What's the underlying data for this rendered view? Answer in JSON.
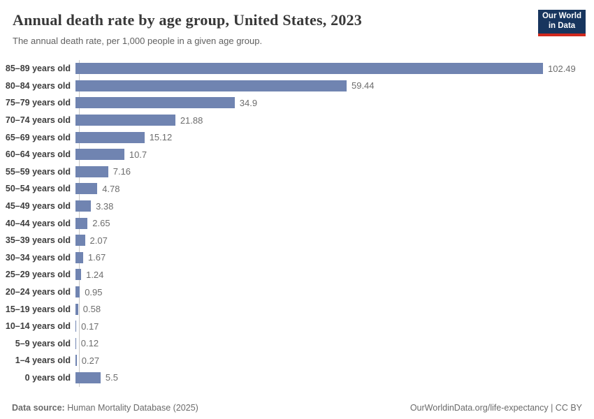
{
  "header": {
    "title": "Annual death rate by age group, United States, 2023",
    "subtitle": "The annual death rate, per 1,000 people in a given age group."
  },
  "logo": {
    "line1": "Our World",
    "line2": "in Data",
    "bg_color": "#17355e",
    "accent_color": "#d0291d"
  },
  "chart_data": {
    "type": "bar",
    "orientation": "horizontal",
    "title": "Annual death rate by age group, United States, 2023",
    "xlabel": "",
    "ylabel": "",
    "xlim": [
      0,
      105
    ],
    "grid": false,
    "legend": "none",
    "bar_color": "#7084b1",
    "categories": [
      "85–89 years old",
      "80–84 years old",
      "75–79 years old",
      "70–74 years old",
      "65–69 years old",
      "60–64 years old",
      "55–59 years old",
      "50–54 years old",
      "45–49 years old",
      "40–44 years old",
      "35–39 years old",
      "30–34 years old",
      "25–29 years old",
      "20–24 years old",
      "15–19 years old",
      "10–14 years old",
      "5–9 years old",
      "1–4 years old",
      "0 years old"
    ],
    "values": [
      102.49,
      59.44,
      34.9,
      21.88,
      15.12,
      10.7,
      7.16,
      4.78,
      3.38,
      2.65,
      2.07,
      1.67,
      1.24,
      0.95,
      0.58,
      0.17,
      0.12,
      0.27,
      5.5
    ],
    "value_labels": [
      "102.49",
      "59.44",
      "34.9",
      "21.88",
      "15.12",
      "10.7",
      "7.16",
      "4.78",
      "3.38",
      "2.65",
      "2.07",
      "1.67",
      "1.24",
      "0.95",
      "0.58",
      "0.17",
      "0.12",
      "0.27",
      "5.5"
    ]
  },
  "footer": {
    "data_source_label": "Data source:",
    "data_source_value": "Human Mortality Database (2025)",
    "link": "OurWorldinData.org/life-expectancy | CC BY"
  }
}
